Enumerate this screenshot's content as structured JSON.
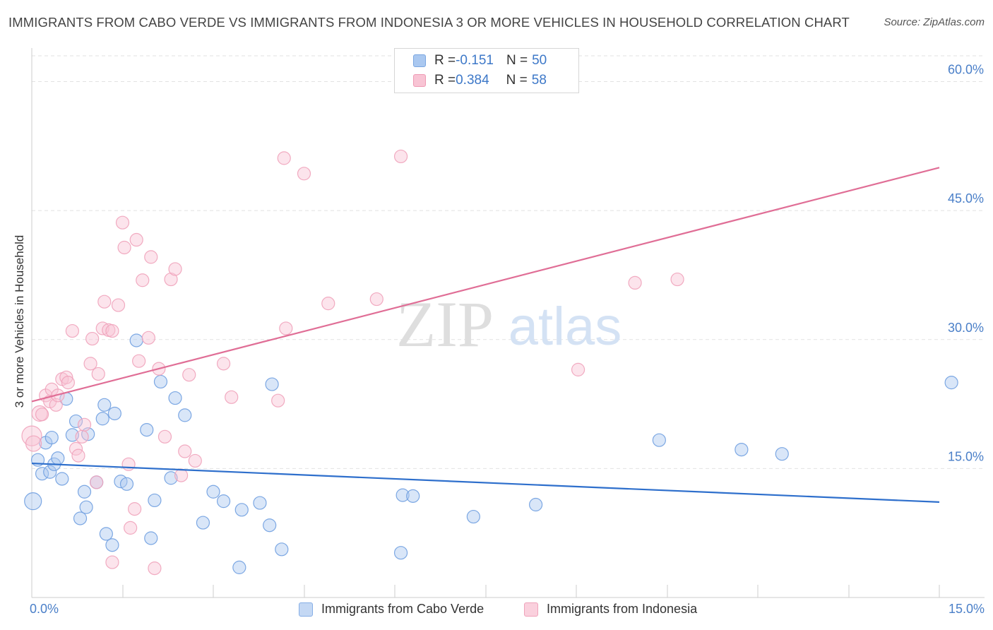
{
  "title": "IMMIGRANTS FROM CABO VERDE VS IMMIGRANTS FROM INDONESIA 3 OR MORE VEHICLES IN HOUSEHOLD CORRELATION CHART",
  "source": "Source: ZipAtlas.com",
  "watermark": {
    "zip": "ZIP",
    "atlas": "atlas"
  },
  "legend": {
    "r_label": "R = ",
    "n_label": "N = ",
    "rows": [
      {
        "r": "-0.151",
        "n": "50",
        "color": "#aac8f0",
        "border": "#7aa6e0"
      },
      {
        "r": "0.384",
        "n": "58",
        "color": "#f8c4d4",
        "border": "#ee9ab4"
      }
    ]
  },
  "bottom_legend": [
    {
      "label": "Immigrants from Cabo Verde",
      "color": "#c4d8f4",
      "border": "#86aee6"
    },
    {
      "label": "Immigrants from Indonesia",
      "color": "#fad0dd",
      "border": "#efa2ba"
    }
  ],
  "x_tick_min": "0.0%",
  "x_tick_max": "15.0%",
  "chart_data": {
    "type": "scatter",
    "title": "IMMIGRANTS FROM CABO VERDE VS IMMIGRANTS FROM INDONESIA 3 OR MORE VEHICLES IN HOUSEHOLD CORRELATION CHART",
    "xlabel": "",
    "ylabel": "3 or more Vehicles in Household",
    "xlim": [
      0,
      15
    ],
    "ylim": [
      0,
      63
    ],
    "y_ticks": [
      {
        "value": 15,
        "label": "15.0%"
      },
      {
        "value": 30,
        "label": "30.0%"
      },
      {
        "value": 45,
        "label": "45.0%"
      },
      {
        "value": 60,
        "label": "60.0%"
      }
    ],
    "grid": "horizontal dashed",
    "legend_position": "top-center",
    "series": [
      {
        "name": "Immigrants from Cabo Verde",
        "color": "#6f9fe0",
        "fill": "#aac8f0",
        "line_color": "#2e6fcc",
        "trend": [
          [
            0,
            15.6
          ],
          [
            15,
            11.1
          ]
        ],
        "points": [
          [
            0.02,
            11.2,
            12
          ],
          [
            0.1,
            16.0,
            9
          ],
          [
            0.17,
            14.4,
            9
          ],
          [
            0.23,
            18.0,
            9
          ],
          [
            0.3,
            14.6,
            9
          ],
          [
            0.33,
            18.6,
            9
          ],
          [
            0.37,
            15.5,
            9
          ],
          [
            0.43,
            16.2,
            9
          ],
          [
            0.5,
            13.8,
            9
          ],
          [
            0.57,
            23.1,
            9
          ],
          [
            0.67,
            18.9,
            9
          ],
          [
            0.73,
            20.5,
            9
          ],
          [
            0.8,
            9.2,
            9
          ],
          [
            0.87,
            12.3,
            9
          ],
          [
            0.9,
            10.5,
            9
          ],
          [
            0.93,
            19.0,
            9
          ],
          [
            1.07,
            13.4,
            9
          ],
          [
            1.17,
            20.8,
            9
          ],
          [
            1.2,
            22.4,
            9
          ],
          [
            1.23,
            7.4,
            9
          ],
          [
            1.33,
            6.1,
            9
          ],
          [
            1.37,
            21.4,
            9
          ],
          [
            1.47,
            13.5,
            9
          ],
          [
            1.57,
            13.2,
            9
          ],
          [
            1.73,
            29.9,
            9
          ],
          [
            1.9,
            19.5,
            9
          ],
          [
            1.97,
            6.9,
            9
          ],
          [
            2.03,
            11.3,
            9
          ],
          [
            2.13,
            25.1,
            9
          ],
          [
            2.3,
            13.9,
            9
          ],
          [
            2.37,
            23.2,
            9
          ],
          [
            2.53,
            21.2,
            9
          ],
          [
            2.83,
            8.7,
            9
          ],
          [
            3.0,
            12.3,
            9
          ],
          [
            3.17,
            11.2,
            9
          ],
          [
            3.43,
            3.5,
            9
          ],
          [
            3.47,
            10.2,
            9
          ],
          [
            3.77,
            11.0,
            9
          ],
          [
            3.93,
            8.4,
            9
          ],
          [
            3.97,
            24.8,
            9
          ],
          [
            4.13,
            5.6,
            9
          ],
          [
            6.1,
            5.2,
            9
          ],
          [
            6.13,
            11.9,
            9
          ],
          [
            6.3,
            11.8,
            9
          ],
          [
            7.3,
            9.4,
            9
          ],
          [
            8.33,
            10.8,
            9
          ],
          [
            10.37,
            18.3,
            9
          ],
          [
            11.73,
            17.2,
            9
          ],
          [
            12.4,
            16.7,
            9
          ],
          [
            15.2,
            25.0,
            9
          ]
        ]
      },
      {
        "name": "Immigrants from Indonesia",
        "color": "#f0a2ba",
        "fill": "#f8c4d4",
        "line_color": "#e06e96",
        "trend": [
          [
            0,
            22.8
          ],
          [
            15,
            50.0
          ]
        ],
        "points": [
          [
            0.0,
            18.8,
            14
          ],
          [
            0.03,
            17.9,
            11
          ],
          [
            0.13,
            21.4,
            11
          ],
          [
            0.17,
            21.3,
            9
          ],
          [
            0.23,
            23.5,
            9
          ],
          [
            0.3,
            22.8,
            9
          ],
          [
            0.33,
            24.2,
            9
          ],
          [
            0.4,
            22.4,
            9
          ],
          [
            0.43,
            23.5,
            9
          ],
          [
            0.5,
            25.4,
            9
          ],
          [
            0.57,
            25.6,
            9
          ],
          [
            0.6,
            25.0,
            9
          ],
          [
            0.67,
            31.0,
            9
          ],
          [
            0.73,
            17.3,
            9
          ],
          [
            0.77,
            16.5,
            9
          ],
          [
            0.83,
            18.7,
            9
          ],
          [
            0.87,
            20.1,
            9
          ],
          [
            0.97,
            27.2,
            9
          ],
          [
            1.0,
            30.1,
            9
          ],
          [
            1.07,
            13.4,
            9
          ],
          [
            1.1,
            26.0,
            9
          ],
          [
            1.17,
            31.3,
            9
          ],
          [
            1.2,
            34.4,
            9
          ],
          [
            1.27,
            31.1,
            9
          ],
          [
            1.33,
            31.0,
            9
          ],
          [
            1.33,
            4.1,
            9
          ],
          [
            1.43,
            34.0,
            9
          ],
          [
            1.5,
            43.6,
            9
          ],
          [
            1.53,
            40.7,
            9
          ],
          [
            1.6,
            15.5,
            9
          ],
          [
            1.63,
            8.1,
            9
          ],
          [
            1.7,
            10.3,
            9
          ],
          [
            1.73,
            41.6,
            9
          ],
          [
            1.77,
            27.5,
            9
          ],
          [
            1.83,
            36.9,
            9
          ],
          [
            1.93,
            30.2,
            9
          ],
          [
            1.97,
            39.6,
            9
          ],
          [
            2.03,
            3.4,
            9
          ],
          [
            2.1,
            26.6,
            9
          ],
          [
            2.2,
            18.7,
            9
          ],
          [
            2.3,
            37.0,
            9
          ],
          [
            2.37,
            38.2,
            9
          ],
          [
            2.47,
            14.2,
            9
          ],
          [
            2.53,
            17.0,
            9
          ],
          [
            2.6,
            25.9,
            9
          ],
          [
            2.7,
            15.9,
            9
          ],
          [
            3.17,
            27.2,
            9
          ],
          [
            3.3,
            23.3,
            9
          ],
          [
            4.07,
            22.9,
            9
          ],
          [
            4.2,
            31.3,
            9
          ],
          [
            4.17,
            51.1,
            9
          ],
          [
            4.5,
            49.3,
            9
          ],
          [
            4.9,
            34.2,
            9
          ],
          [
            5.7,
            34.7,
            9
          ],
          [
            6.1,
            51.3,
            9
          ],
          [
            9.03,
            26.5,
            9
          ],
          [
            9.97,
            36.6,
            9
          ],
          [
            10.67,
            37.0,
            9
          ]
        ]
      }
    ]
  }
}
